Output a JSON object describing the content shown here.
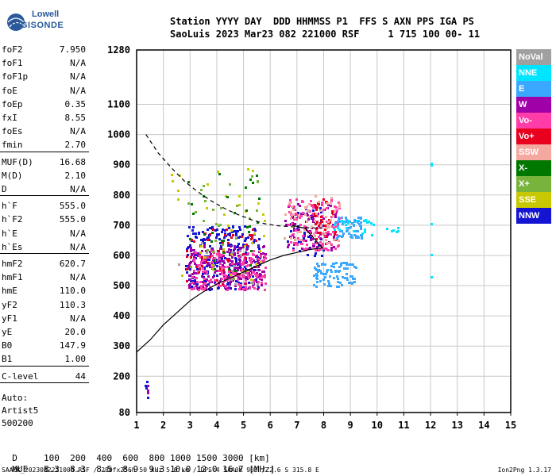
{
  "logo": {
    "line1": "Lowell",
    "line2": "DIGISONDE"
  },
  "header": {
    "line1": "Station YYYY DAY  DDD HHMMSS P1  FFS S AXN PPS IGA PS",
    "line2": "SaoLuis 2023 Mar23 082 221000 RSF     1 715 100 00- 11"
  },
  "params": [
    {
      "name": "foF2",
      "value": "7.950"
    },
    {
      "name": "foF1",
      "value": "N/A"
    },
    {
      "name": "foF1p",
      "value": "N/A"
    },
    {
      "name": "foE",
      "value": "N/A"
    },
    {
      "name": "foEp",
      "value": "0.35"
    },
    {
      "name": "fxI",
      "value": "8.55"
    },
    {
      "name": "foEs",
      "value": "N/A"
    },
    {
      "name": "fmin",
      "value": "2.70"
    },
    {
      "name": "MUF(D)",
      "value": "16.68"
    },
    {
      "name": "M(D)",
      "value": "2.10"
    },
    {
      "name": "D",
      "value": "N/A"
    },
    {
      "name": "h`F",
      "value": "555.0"
    },
    {
      "name": "h`F2",
      "value": "555.0"
    },
    {
      "name": "h`E",
      "value": "N/A"
    },
    {
      "name": "h`Es",
      "value": "N/A"
    },
    {
      "name": "hmF2",
      "value": "620.7"
    },
    {
      "name": "hmF1",
      "value": "N/A"
    },
    {
      "name": "hmE",
      "value": "110.0"
    },
    {
      "name": "yF2",
      "value": "110.3"
    },
    {
      "name": "yF1",
      "value": "N/A"
    },
    {
      "name": "yE",
      "value": "20.0"
    },
    {
      "name": "B0",
      "value": "147.9"
    },
    {
      "name": "B1",
      "value": "1.00"
    },
    {
      "name": "C-level",
      "value": "44"
    }
  ],
  "autoscale": {
    "line1": "Auto:",
    "line2": "Artist5",
    "line3": "500200"
  },
  "legend": [
    {
      "label": "NoVal",
      "color": "#a0a0a0"
    },
    {
      "label": "NNE",
      "color": "#00e5ff"
    },
    {
      "label": "E",
      "color": "#3aa8ff"
    },
    {
      "label": "W",
      "color": "#a000a8"
    },
    {
      "label": "Vo-",
      "color": "#ff3ca8"
    },
    {
      "label": "Vo+",
      "color": "#e8001e"
    },
    {
      "label": "SSW",
      "color": "#f4a8a0"
    },
    {
      "label": "X-",
      "color": "#007800"
    },
    {
      "label": "X+",
      "color": "#78b43c"
    },
    {
      "label": "SSE",
      "color": "#c8c800"
    },
    {
      "label": "NNW",
      "color": "#1414d2"
    }
  ],
  "muf_table": {
    "d_label": "D",
    "d_values": "100  200  400  600  800 1000 1500 3000 [km]",
    "m_label": "MUF",
    "m_values": "8.3  8.3  8.5  8.9  9.3 10.0 12.0 16.7 [MHz]"
  },
  "footer": "SAA0K_2023082221000.RSF / 280fx256h 50 kHz 5.0 km / DPS-4 SAA0K 903 / 2.6 S 315.8 E",
  "version": "Ion2Png 1.3.17",
  "chart_data": {
    "type": "scatter",
    "xlim": [
      1,
      15
    ],
    "ylim": [
      80,
      1280
    ],
    "x_ticks": [
      1,
      2,
      3,
      4,
      5,
      6,
      7,
      8,
      9,
      10,
      11,
      12,
      13,
      14,
      15
    ],
    "y_ticks": [
      80,
      200,
      300,
      400,
      500,
      600,
      700,
      800,
      900,
      1000,
      1100,
      1280
    ],
    "grid": true,
    "series": [
      {
        "name": "NNW",
        "color": "#1414d2",
        "clusters": [
          {
            "x": [
              2.8,
              5.6
            ],
            "y": [
              490,
              700
            ],
            "n": 260
          },
          {
            "x": [
              6.6,
              8.0
            ],
            "y": [
              600,
              760
            ],
            "n": 60
          },
          {
            "x": [
              1.3,
              1.4
            ],
            "y": [
              130,
              195
            ],
            "n": 4
          }
        ]
      },
      {
        "name": "W",
        "color": "#a000a8",
        "clusters": [
          {
            "x": [
              2.9,
              5.8
            ],
            "y": [
              490,
              640
            ],
            "n": 220
          },
          {
            "x": [
              6.5,
              8.5
            ],
            "y": [
              620,
              780
            ],
            "n": 70
          },
          {
            "x": [
              1.3,
              1.4
            ],
            "y": [
              140,
              180
            ],
            "n": 3
          }
        ]
      },
      {
        "name": "Vo-",
        "color": "#ff3ca8",
        "clusters": [
          {
            "x": [
              3.0,
              5.8
            ],
            "y": [
              490,
              620
            ],
            "n": 160
          },
          {
            "x": [
              6.6,
              8.6
            ],
            "y": [
              620,
              790
            ],
            "n": 110
          }
        ]
      },
      {
        "name": "Vo+",
        "color": "#e8001e",
        "clusters": [
          {
            "x": [
              2.8,
              5.5
            ],
            "y": [
              500,
              700
            ],
            "n": 50
          },
          {
            "x": [
              7.6,
              8.4
            ],
            "y": [
              640,
              790
            ],
            "n": 40
          }
        ]
      },
      {
        "name": "SSW",
        "color": "#f4a8a0",
        "clusters": [
          {
            "x": [
              6.5,
              8.6
            ],
            "y": [
              640,
              800
            ],
            "n": 60
          }
        ]
      },
      {
        "name": "E",
        "color": "#3aa8ff",
        "clusters": [
          {
            "x": [
              7.6,
              9.2
            ],
            "y": [
              500,
              580
            ],
            "n": 90
          },
          {
            "x": [
              8.4,
              9.4
            ],
            "y": [
              660,
              730
            ],
            "n": 60
          }
        ]
      },
      {
        "name": "NNE",
        "color": "#00e5ff",
        "clusters": [
          {
            "x": [
              8.2,
              10.8
            ],
            "y": [
              670,
              720
            ],
            "n": 30
          },
          {
            "x": [
              12.0,
              12.0
            ],
            "y": [
              400,
              1000
            ],
            "n": 5
          }
        ]
      },
      {
        "name": "SSE",
        "color": "#c8c800",
        "clusters": [
          {
            "x": [
              2.2,
              5.8
            ],
            "y": [
              500,
              930
            ],
            "n": 40
          }
        ]
      },
      {
        "name": "X-",
        "color": "#007800",
        "clusters": [
          {
            "x": [
              2.8,
              5.6
            ],
            "y": [
              520,
              880
            ],
            "n": 30
          }
        ]
      },
      {
        "name": "X+",
        "color": "#78b43c",
        "clusters": [
          {
            "x": [
              2.8,
              5.6
            ],
            "y": [
              520,
              880
            ],
            "n": 25
          }
        ]
      },
      {
        "name": "NoVal",
        "color": "#a0a0a0",
        "clusters": [
          {
            "x": [
              2.5,
              5.5
            ],
            "y": [
              500,
              650
            ],
            "n": 15
          }
        ]
      }
    ],
    "profile_curve": {
      "x": [
        1.0,
        1.5,
        2.0,
        2.5,
        3.0,
        3.5,
        4.0,
        4.5,
        5.0,
        5.5,
        6.0,
        6.5,
        7.0,
        7.5,
        7.95,
        7.3,
        6.8
      ],
      "y": [
        280,
        320,
        370,
        410,
        450,
        480,
        505,
        525,
        545,
        565,
        585,
        600,
        610,
        620,
        625,
        690,
        700
      ]
    },
    "muf_curve_dashed": {
      "x": [
        1.35,
        1.8,
        2.3,
        2.8,
        3.3,
        3.8,
        4.3,
        4.8,
        5.3,
        5.8,
        6.3,
        6.8,
        7.3,
        7.95
      ],
      "y": [
        1000,
        940,
        890,
        845,
        810,
        780,
        755,
        735,
        718,
        705,
        698,
        695,
        692,
        690
      ]
    }
  }
}
